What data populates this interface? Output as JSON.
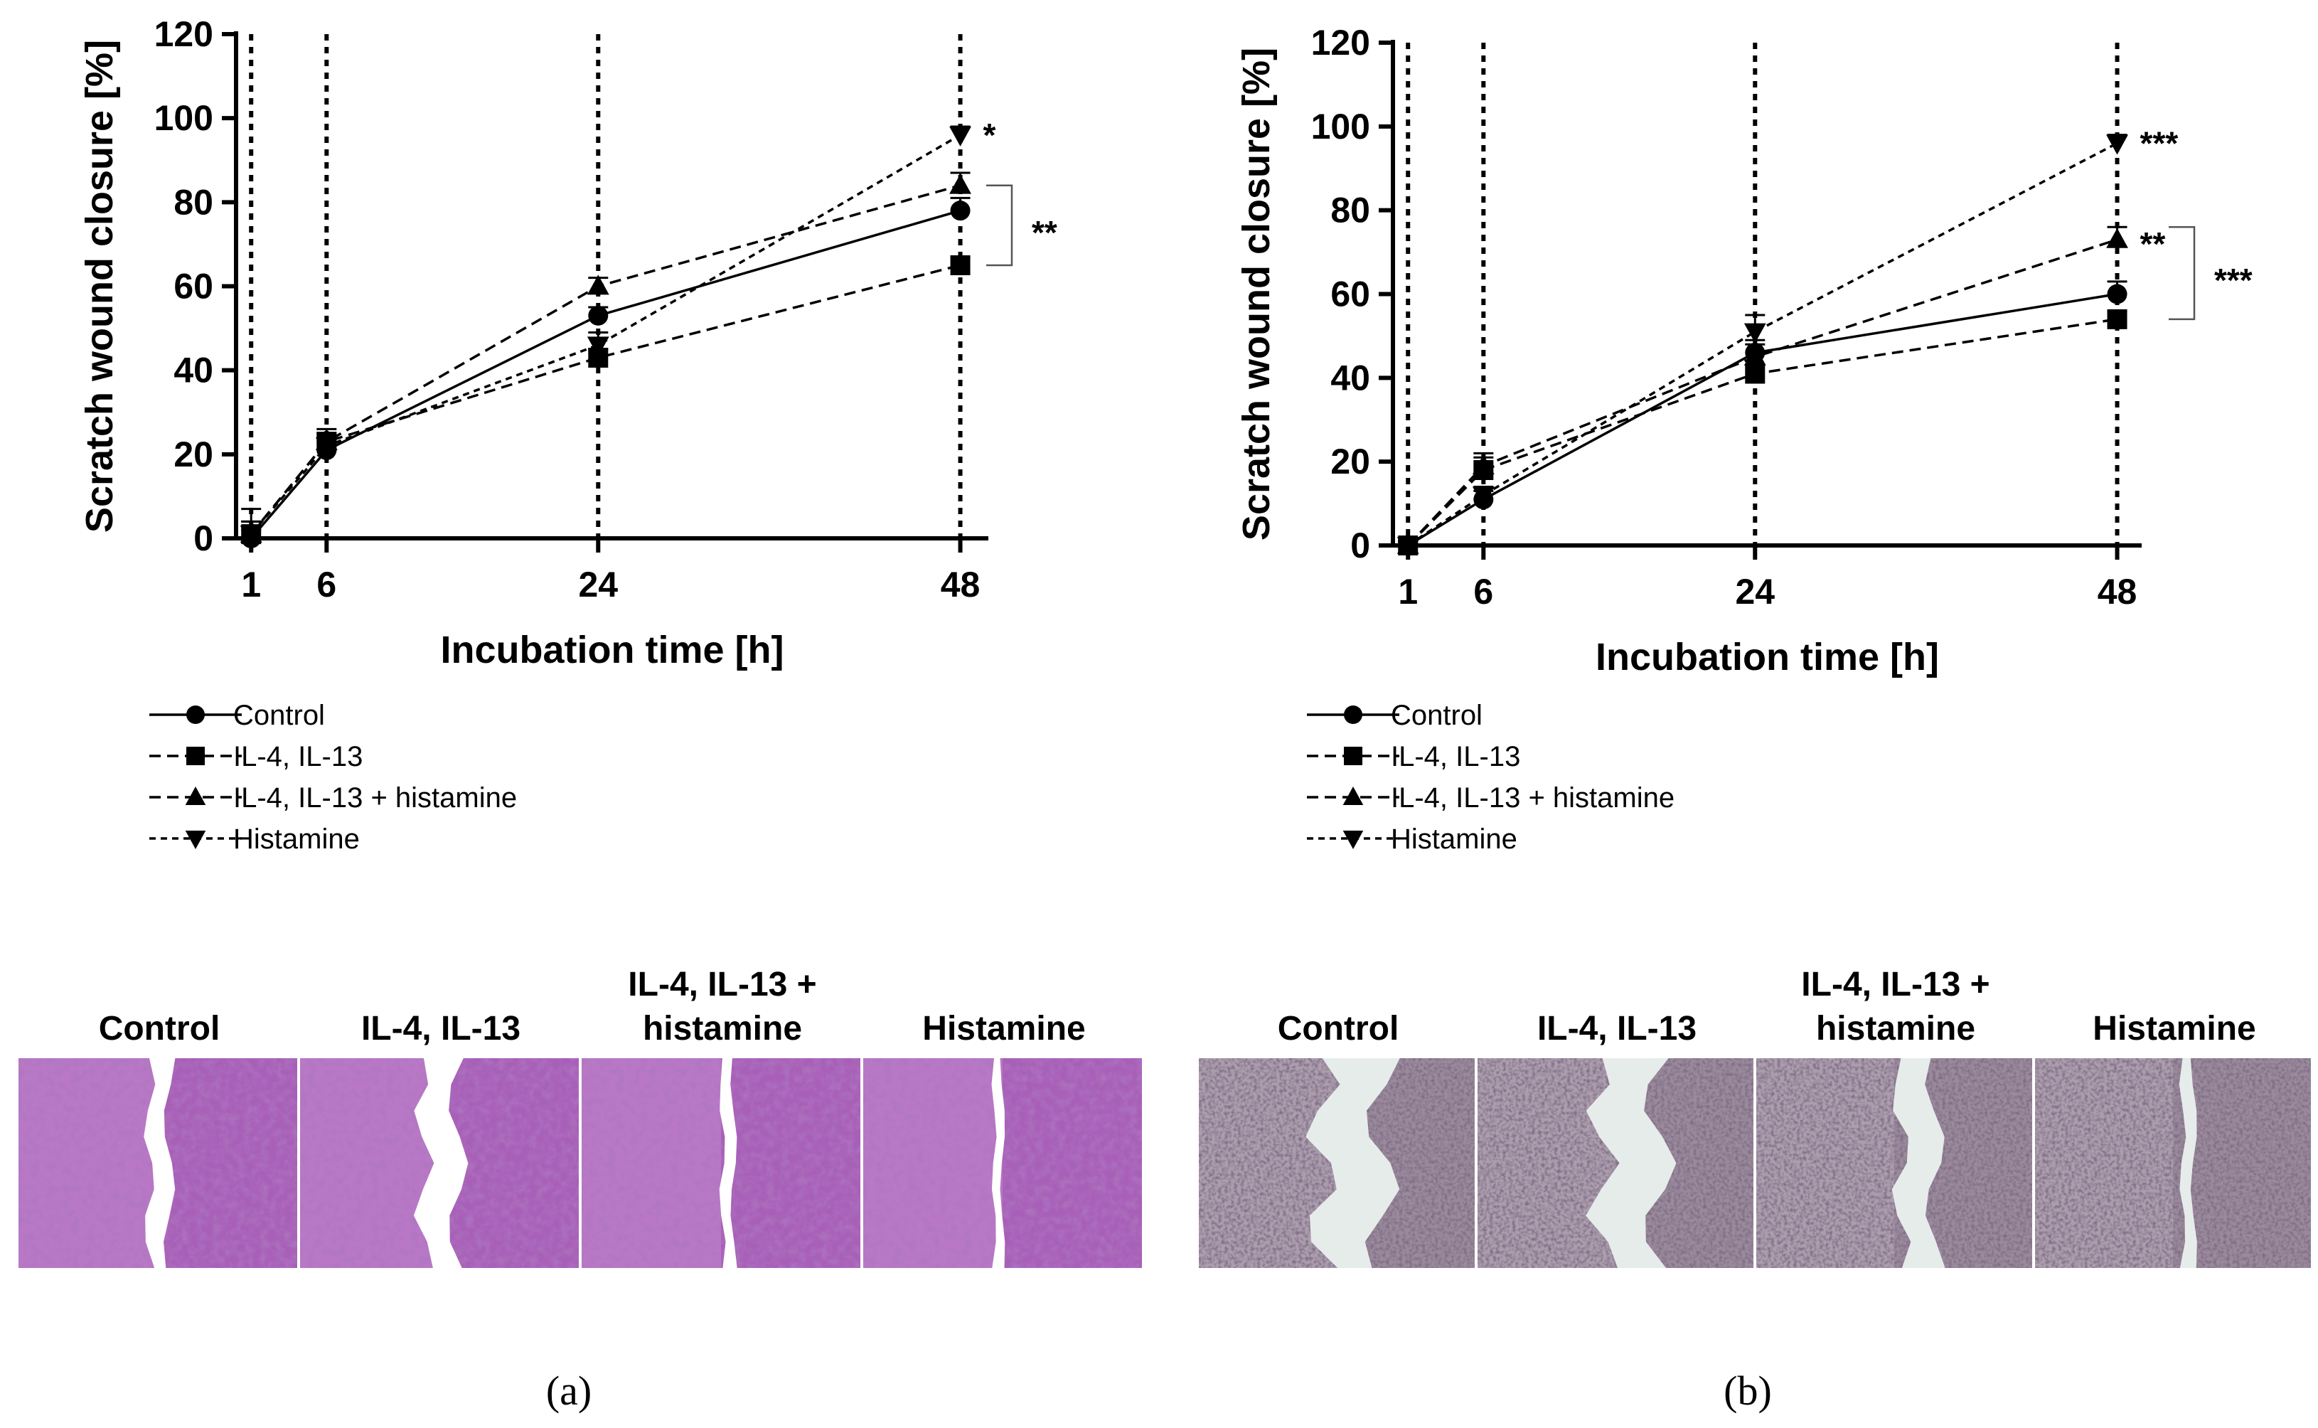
{
  "chart_data": [
    {
      "panel": "a",
      "type": "line",
      "xlabel": "Incubation time [h]",
      "ylabel": "Scratch wound closure [%]",
      "x": [
        1,
        6,
        24,
        48
      ],
      "xticks": [
        1,
        6,
        24,
        48
      ],
      "xlim": [
        0,
        50
      ],
      "ylim": [
        0,
        120
      ],
      "yticks": [
        0,
        20,
        40,
        60,
        80,
        100,
        120
      ],
      "vlines": [
        1,
        6,
        24,
        48
      ],
      "series": [
        {
          "name": "Control",
          "marker": "circle",
          "dash": "solid",
          "values": [
            0,
            21,
            53,
            78
          ],
          "errors": [
            2,
            2,
            2,
            3
          ]
        },
        {
          "name": "IL-4, IL-13",
          "marker": "square",
          "dash": "dashed",
          "values": [
            1,
            23,
            43,
            65
          ],
          "errors": [
            3,
            2,
            2,
            2
          ]
        },
        {
          "name": "IL-4, IL-13 + histamine",
          "marker": "triangle-up",
          "dash": "dashed",
          "values": [
            1,
            23,
            60,
            84
          ],
          "errors": [
            3,
            3,
            2,
            3
          ]
        },
        {
          "name": "Histamine",
          "marker": "triangle-down",
          "dash": "dotted",
          "values": [
            1,
            22,
            46,
            96
          ],
          "errors": [
            6,
            2,
            3,
            2
          ]
        }
      ],
      "annotations": [
        {
          "text": "*",
          "x": 48,
          "y": 97
        },
        {
          "text": "**",
          "bracket": [
            65,
            84
          ]
        }
      ],
      "caption": "(a)"
    },
    {
      "panel": "b",
      "type": "line",
      "xlabel": "Incubation time [h]",
      "ylabel": "Scratch wound closure [%]",
      "x": [
        1,
        6,
        24,
        48
      ],
      "xticks": [
        1,
        6,
        24,
        48
      ],
      "xlim": [
        0,
        50
      ],
      "ylim": [
        0,
        120
      ],
      "yticks": [
        0,
        20,
        40,
        60,
        80,
        100,
        120
      ],
      "vlines": [
        1,
        6,
        24,
        48
      ],
      "series": [
        {
          "name": "Control",
          "marker": "circle",
          "dash": "solid",
          "values": [
            0,
            11,
            46,
            60
          ],
          "errors": [
            1,
            2,
            3,
            3
          ]
        },
        {
          "name": "IL-4, IL-13",
          "marker": "square",
          "dash": "dashed",
          "values": [
            0,
            18,
            41,
            54
          ],
          "errors": [
            1,
            3,
            2,
            2
          ]
        },
        {
          "name": "IL-4, IL-13 + histamine",
          "marker": "triangle-up",
          "dash": "dashed",
          "values": [
            0,
            19,
            45,
            73
          ],
          "errors": [
            1,
            3,
            3,
            3
          ]
        },
        {
          "name": "Histamine",
          "marker": "triangle-down",
          "dash": "dotted",
          "values": [
            0,
            12,
            51,
            96
          ],
          "errors": [
            1,
            2,
            4,
            2
          ]
        }
      ],
      "annotations": [
        {
          "text": "***",
          "x": 48,
          "y": 97
        },
        {
          "text": "**",
          "x": 48,
          "y": 73
        },
        {
          "text": "***",
          "bracket": [
            54,
            76
          ]
        }
      ],
      "caption": "(b)"
    }
  ],
  "micrographs": {
    "a": {
      "labels": [
        [
          "Control"
        ],
        [
          "IL-4, IL-13"
        ],
        [
          "IL-4, IL-13 +",
          "histamine"
        ],
        [
          "Histamine"
        ]
      ],
      "colors": {
        "base": "#a85fb8",
        "light": "#d9a9e0",
        "dark": "#6e3388",
        "gap": "#ffffff"
      }
    },
    "b": {
      "labels": [
        [
          "Control"
        ],
        [
          "IL-4, IL-13"
        ],
        [
          "IL-4, IL-13 +",
          "histamine"
        ],
        [
          "Histamine"
        ]
      ],
      "colors": {
        "base": "#9a8a9a",
        "light": "#cfc3cf",
        "dark": "#4a3a4e",
        "gap": "#e6ecea"
      }
    }
  },
  "captions": {
    "a": "(a)",
    "b": "(b)"
  }
}
